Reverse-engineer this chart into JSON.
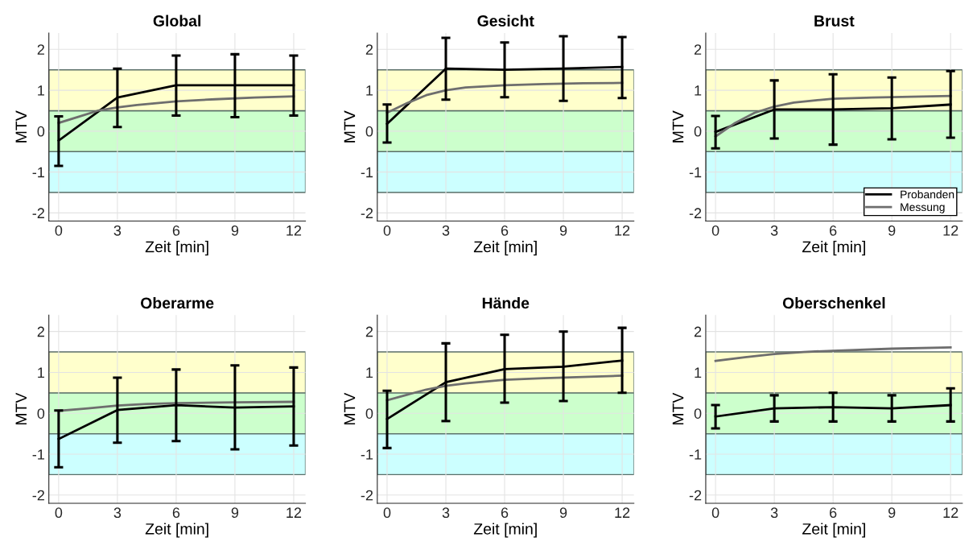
{
  "chart_data": [
    {
      "type": "line",
      "title": "Global",
      "xlabel": "Zeit [min]",
      "ylabel": "MTV",
      "xlim": [
        -0.5,
        12.6
      ],
      "ylim": [
        -2.2,
        2.4
      ],
      "xticks": [
        0,
        3,
        6,
        9,
        12
      ],
      "yticks": [
        -2,
        -1,
        0,
        1,
        2
      ],
      "grid": true,
      "bands": [
        {
          "axis": "y",
          "from": -1.5,
          "to": -0.5,
          "color": "#ccffff"
        },
        {
          "axis": "y",
          "from": -0.5,
          "to": 0.5,
          "color": "#ccffcc"
        },
        {
          "axis": "y",
          "from": 0.5,
          "to": 1.5,
          "color": "#ffffcc"
        }
      ],
      "series": [
        {
          "color": "#000000",
          "x": [
            0,
            3,
            6,
            9,
            12
          ],
          "values": [
            -0.23,
            0.82,
            1.12,
            1.12,
            1.12
          ],
          "errors": [
            [
              -0.85,
              0.36
            ],
            [
              0.1,
              1.53
            ],
            [
              0.38,
              1.85
            ],
            [
              0.34,
              1.88
            ],
            [
              0.38,
              1.85
            ]
          ]
        },
        {
          "color": "#6e6e6e",
          "x": [
            0,
            1,
            2,
            3,
            4,
            6,
            8,
            10,
            12
          ],
          "values": [
            0.2,
            0.35,
            0.5,
            0.58,
            0.64,
            0.73,
            0.78,
            0.82,
            0.85
          ]
        }
      ]
    },
    {
      "type": "line",
      "title": "Gesicht",
      "xlabel": "Zeit [min]",
      "ylabel": "MTV",
      "xlim": [
        -0.5,
        12.6
      ],
      "ylim": [
        -2.2,
        2.4
      ],
      "xticks": [
        0,
        3,
        6,
        9,
        12
      ],
      "yticks": [
        -2,
        -1,
        0,
        1,
        2
      ],
      "grid": true,
      "bands": [
        {
          "axis": "y",
          "from": -1.5,
          "to": -0.5,
          "color": "#ccffff"
        },
        {
          "axis": "y",
          "from": -0.5,
          "to": 0.5,
          "color": "#ccffcc"
        },
        {
          "axis": "y",
          "from": 0.5,
          "to": 1.5,
          "color": "#ffffcc"
        }
      ],
      "series": [
        {
          "color": "#000000",
          "x": [
            0,
            3,
            6,
            9,
            12
          ],
          "values": [
            0.18,
            1.53,
            1.5,
            1.53,
            1.57
          ],
          "errors": [
            [
              -0.28,
              0.65
            ],
            [
              0.77,
              2.28
            ],
            [
              0.83,
              2.17
            ],
            [
              0.74,
              2.32
            ],
            [
              0.81,
              2.3
            ]
          ]
        },
        {
          "color": "#6e6e6e",
          "x": [
            0,
            1,
            2,
            3,
            4,
            6,
            8,
            10,
            12
          ],
          "values": [
            0.45,
            0.68,
            0.88,
            1.0,
            1.07,
            1.12,
            1.15,
            1.17,
            1.18
          ]
        }
      ]
    },
    {
      "type": "line",
      "title": "Brust",
      "xlabel": "Zeit [min]",
      "ylabel": "MTV",
      "xlim": [
        -0.5,
        12.6
      ],
      "ylim": [
        -2.2,
        2.4
      ],
      "xticks": [
        0,
        3,
        6,
        9,
        12
      ],
      "yticks": [
        -2,
        -1,
        0,
        1,
        2
      ],
      "grid": true,
      "legend": "bottom right",
      "bands": [
        {
          "axis": "y",
          "from": -1.5,
          "to": -0.5,
          "color": "#ccffff"
        },
        {
          "axis": "y",
          "from": -0.5,
          "to": 0.5,
          "color": "#ccffcc"
        },
        {
          "axis": "y",
          "from": 0.5,
          "to": 1.5,
          "color": "#ffffcc"
        }
      ],
      "series": [
        {
          "name": "Probanden",
          "color": "#000000",
          "x": [
            0,
            3,
            6,
            9,
            12
          ],
          "values": [
            -0.02,
            0.53,
            0.53,
            0.56,
            0.65
          ],
          "errors": [
            [
              -0.42,
              0.37
            ],
            [
              -0.18,
              1.24
            ],
            [
              -0.33,
              1.39
            ],
            [
              -0.2,
              1.31
            ],
            [
              -0.16,
              1.47
            ]
          ]
        },
        {
          "name": "Messung",
          "color": "#6e6e6e",
          "x": [
            0,
            1,
            2,
            3,
            4,
            5,
            6,
            8,
            10,
            12
          ],
          "values": [
            -0.13,
            0.2,
            0.45,
            0.6,
            0.7,
            0.75,
            0.79,
            0.82,
            0.84,
            0.86
          ]
        }
      ]
    },
    {
      "type": "line",
      "title": "Oberarme",
      "xlabel": "Zeit [min]",
      "ylabel": "MTV",
      "xlim": [
        -0.5,
        12.6
      ],
      "ylim": [
        -2.2,
        2.4
      ],
      "xticks": [
        0,
        3,
        6,
        9,
        12
      ],
      "yticks": [
        -2,
        -1,
        0,
        1,
        2
      ],
      "grid": true,
      "bands": [
        {
          "axis": "y",
          "from": -1.5,
          "to": -0.5,
          "color": "#ccffff"
        },
        {
          "axis": "y",
          "from": -0.5,
          "to": 0.5,
          "color": "#ccffcc"
        },
        {
          "axis": "y",
          "from": 0.5,
          "to": 1.5,
          "color": "#ffffcc"
        }
      ],
      "series": [
        {
          "color": "#000000",
          "x": [
            0,
            3,
            6,
            9,
            12
          ],
          "values": [
            -0.63,
            0.08,
            0.2,
            0.14,
            0.17
          ],
          "errors": [
            [
              -1.32,
              0.07
            ],
            [
              -0.72,
              0.87
            ],
            [
              -0.68,
              1.07
            ],
            [
              -0.88,
              1.17
            ],
            [
              -0.79,
              1.12
            ]
          ]
        },
        {
          "color": "#6e6e6e",
          "x": [
            0,
            1.5,
            3,
            4.5,
            6,
            9,
            12
          ],
          "values": [
            0.06,
            0.12,
            0.19,
            0.23,
            0.25,
            0.27,
            0.28
          ]
        }
      ]
    },
    {
      "type": "line",
      "title": "Hände",
      "xlabel": "Zeit [min]",
      "ylabel": "MTV",
      "xlim": [
        -0.5,
        12.6
      ],
      "ylim": [
        -2.2,
        2.4
      ],
      "xticks": [
        0,
        3,
        6,
        9,
        12
      ],
      "yticks": [
        -2,
        -1,
        0,
        1,
        2
      ],
      "grid": true,
      "bands": [
        {
          "axis": "y",
          "from": -1.5,
          "to": -0.5,
          "color": "#ccffff"
        },
        {
          "axis": "y",
          "from": -0.5,
          "to": 0.5,
          "color": "#ccffcc"
        },
        {
          "axis": "y",
          "from": 0.5,
          "to": 1.5,
          "color": "#ffffcc"
        }
      ],
      "series": [
        {
          "color": "#000000",
          "x": [
            0,
            3,
            6,
            9,
            12
          ],
          "values": [
            -0.14,
            0.76,
            1.08,
            1.14,
            1.29
          ],
          "errors": [
            [
              -0.85,
              0.55
            ],
            [
              -0.19,
              1.71
            ],
            [
              0.26,
              1.92
            ],
            [
              0.3,
              2.0
            ],
            [
              0.5,
              2.09
            ]
          ]
        },
        {
          "color": "#6e6e6e",
          "x": [
            0,
            1,
            2,
            3,
            4,
            6,
            8,
            10,
            12
          ],
          "values": [
            0.32,
            0.45,
            0.58,
            0.67,
            0.73,
            0.82,
            0.86,
            0.89,
            0.92
          ]
        }
      ]
    },
    {
      "type": "line",
      "title": "Oberschenkel",
      "xlabel": "Zeit [min]",
      "ylabel": "MTV",
      "xlim": [
        -0.5,
        12.6
      ],
      "ylim": [
        -2.2,
        2.4
      ],
      "xticks": [
        0,
        3,
        6,
        9,
        12
      ],
      "yticks": [
        -2,
        -1,
        0,
        1,
        2
      ],
      "grid": true,
      "bands": [
        {
          "axis": "y",
          "from": -1.5,
          "to": -0.5,
          "color": "#ccffff"
        },
        {
          "axis": "y",
          "from": -0.5,
          "to": 0.5,
          "color": "#ccffcc"
        },
        {
          "axis": "y",
          "from": 0.5,
          "to": 1.5,
          "color": "#ffffcc"
        }
      ],
      "series": [
        {
          "color": "#000000",
          "x": [
            0,
            3,
            6,
            9,
            12
          ],
          "values": [
            -0.08,
            0.12,
            0.15,
            0.12,
            0.2
          ],
          "errors": [
            [
              -0.37,
              0.2
            ],
            [
              -0.2,
              0.44
            ],
            [
              -0.2,
              0.5
            ],
            [
              -0.2,
              0.44
            ],
            [
              -0.2,
              0.61
            ]
          ]
        },
        {
          "color": "#6e6e6e",
          "x": [
            0,
            1.5,
            3,
            4.5,
            6,
            9,
            12
          ],
          "values": [
            1.28,
            1.37,
            1.45,
            1.5,
            1.53,
            1.58,
            1.61
          ]
        }
      ]
    }
  ]
}
